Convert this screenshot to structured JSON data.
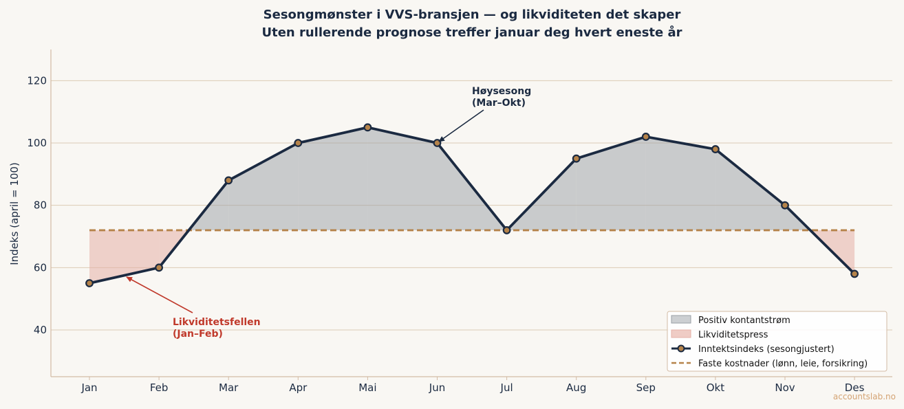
{
  "colors": {
    "background": "#f9f7f3",
    "line": "#1b2a41",
    "marker_fill": "#b5834a",
    "positive_fill": "#9aa0a6",
    "pressure_fill": "#e6b1a6",
    "fixed_costs": "#b5834a",
    "grid": "#dccbb5",
    "spine": "#d3bba4",
    "pressure_text": "#c0392b",
    "watermark": "#d4a373"
  },
  "chart_data": {
    "type": "line",
    "title": "Sesongmønster i VVS-bransjen — og likviditeten det skaper",
    "subtitle": "Uten rullerende prognose treffer januar deg hvert eneste år",
    "xlabel": "",
    "ylabel": "Indeks (april = 100)",
    "categories": [
      "Jan",
      "Feb",
      "Mar",
      "Apr",
      "Mai",
      "Jun",
      "Jul",
      "Aug",
      "Sep",
      "Okt",
      "Nov",
      "Des"
    ],
    "series": [
      {
        "name": "Inntektsindeks (sesongjustert)",
        "values": [
          55,
          60,
          88,
          100,
          105,
          100,
          72,
          95,
          102,
          98,
          80,
          58
        ]
      },
      {
        "name": "Faste kostnader (lønn, leie, forsikring)",
        "values": [
          72,
          72,
          72,
          72,
          72,
          72,
          72,
          72,
          72,
          72,
          72,
          72
        ]
      }
    ],
    "fill_areas": [
      {
        "name": "Positiv kontantstrøm",
        "condition": "income above fixed costs"
      },
      {
        "name": "Likviditetspress",
        "condition": "income below fixed costs"
      }
    ],
    "ylim": [
      25,
      130
    ],
    "yticks": [
      40,
      60,
      80,
      100,
      120
    ],
    "grid": "horizontal",
    "legend_position": "bottom-right",
    "annotations": [
      {
        "label_lines": [
          "Høysesong",
          "(Mar–Okt)"
        ],
        "points_to": {
          "category": "Jun",
          "value": 100
        }
      },
      {
        "label_lines": [
          "Likviditetsfellen",
          "(Jan–Feb)"
        ],
        "points_to": {
          "category": "Jan–Feb",
          "value": 57
        }
      }
    ]
  },
  "watermark": "accountslab.no"
}
